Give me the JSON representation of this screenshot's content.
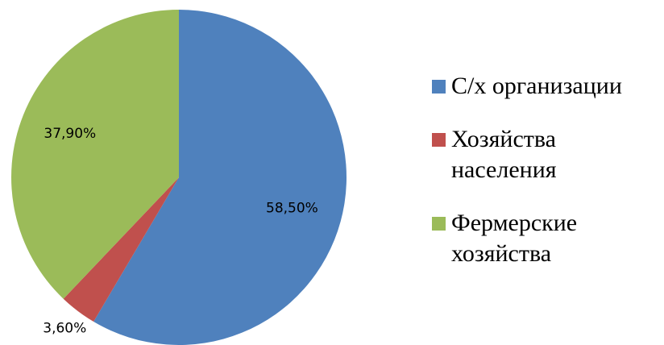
{
  "chart_data": {
    "type": "pie",
    "series": [
      {
        "name": "С/х организации",
        "color": "#4f81bd",
        "values": [
          58.5
        ],
        "value_labels": [
          "58,50%"
        ]
      },
      {
        "name": "Хозяйства населения",
        "color": "#c0504d",
        "values": [
          3.6
        ],
        "value_labels": [
          "3,60%"
        ]
      },
      {
        "name": "Фермерские хозяйства",
        "color": "#9bbb59",
        "values": [
          37.9
        ],
        "value_labels": [
          "37,90%"
        ]
      }
    ]
  }
}
